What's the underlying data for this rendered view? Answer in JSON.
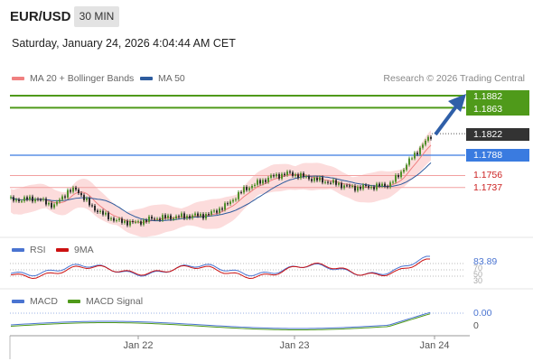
{
  "header": {
    "symbol": "EUR/USD",
    "timeframe": "30 MIN",
    "datetime": "Saturday, January 24, 2026 4:04:44 AM CET"
  },
  "legend": {
    "items": [
      {
        "label": "MA 20 + Bollinger Bands",
        "color": "#f08080"
      },
      {
        "label": "MA 50",
        "color": "#2e5c9e"
      }
    ],
    "credit": "Research © 2026 Trading Central"
  },
  "levels": [
    {
      "value": "1.1882",
      "kind": "resistance",
      "color": "#4f9a1a"
    },
    {
      "value": "1.1863",
      "kind": "resistance",
      "color": "#4f9a1a"
    },
    {
      "value": "1.1822",
      "kind": "last",
      "color": "#333333"
    },
    {
      "value": "1.1788",
      "kind": "pivot",
      "color": "#3a7be0"
    },
    {
      "value": "1.1756",
      "kind": "support",
      "color": "#cc2222"
    },
    {
      "value": "1.1737",
      "kind": "support",
      "color": "#cc2222"
    }
  ],
  "rsi_panel": {
    "legend": [
      {
        "label": "RSI",
        "color": "#4a74d1"
      },
      {
        "label": "9MA",
        "color": "#cc1111"
      }
    ],
    "value": "83.89",
    "levels": [
      "70",
      "50",
      "30"
    ]
  },
  "macd_panel": {
    "legend": [
      {
        "label": "MACD",
        "color": "#4a74d1"
      },
      {
        "label": "MACD Signal",
        "color": "#4f9a1a"
      }
    ],
    "value": "0.00",
    "zero_label": "0"
  },
  "x_axis": {
    "labels": [
      "Jan 22",
      "Jan 23",
      "Jan 24"
    ]
  }
}
